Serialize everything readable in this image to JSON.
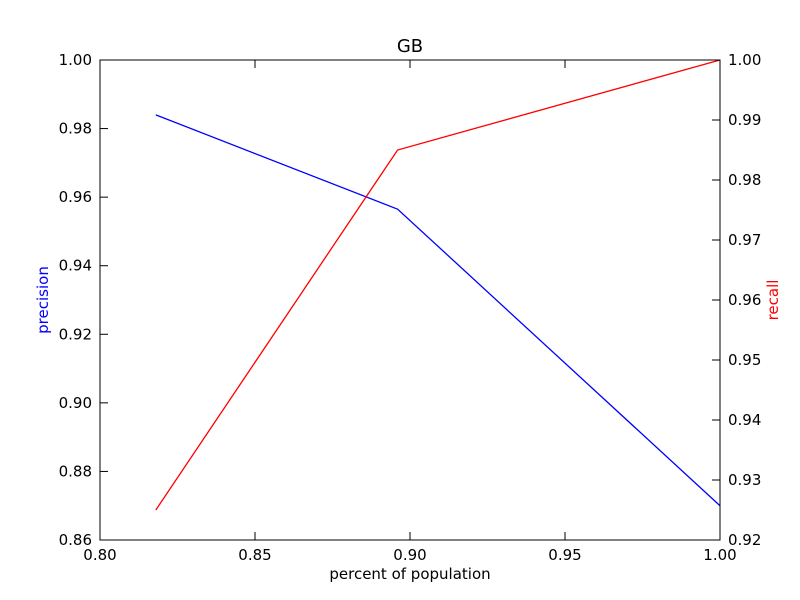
{
  "chart_data": {
    "type": "line",
    "title": "GB",
    "xlabel": "percent of population",
    "ylabel_left": "precision",
    "ylabel_right": "recall",
    "xlim": [
      0.8,
      1.0
    ],
    "ylim_left": [
      0.86,
      1.0
    ],
    "ylim_right": [
      0.92,
      1.0
    ],
    "x_ticks": [
      "0.80",
      "0.85",
      "0.90",
      "0.95",
      "1.00"
    ],
    "y_ticks_left": [
      "0.86",
      "0.88",
      "0.90",
      "0.92",
      "0.94",
      "0.96",
      "0.98",
      "1.00"
    ],
    "y_ticks_right": [
      "0.92",
      "0.93",
      "0.94",
      "0.95",
      "0.96",
      "0.97",
      "0.98",
      "0.99",
      "1.00"
    ],
    "grid": false,
    "series": [
      {
        "axis": "left",
        "color": "#0000ff",
        "x": [
          0.818,
          0.896,
          1.0
        ],
        "y": [
          0.984,
          0.9565,
          0.87
        ]
      },
      {
        "axis": "right",
        "color": "#ff0000",
        "x": [
          0.818,
          0.896,
          1.0
        ],
        "y": [
          0.925,
          0.985,
          1.0
        ]
      }
    ],
    "colors": {
      "left_axis_label": "#0000ff",
      "right_axis_label": "#ff0000"
    }
  }
}
